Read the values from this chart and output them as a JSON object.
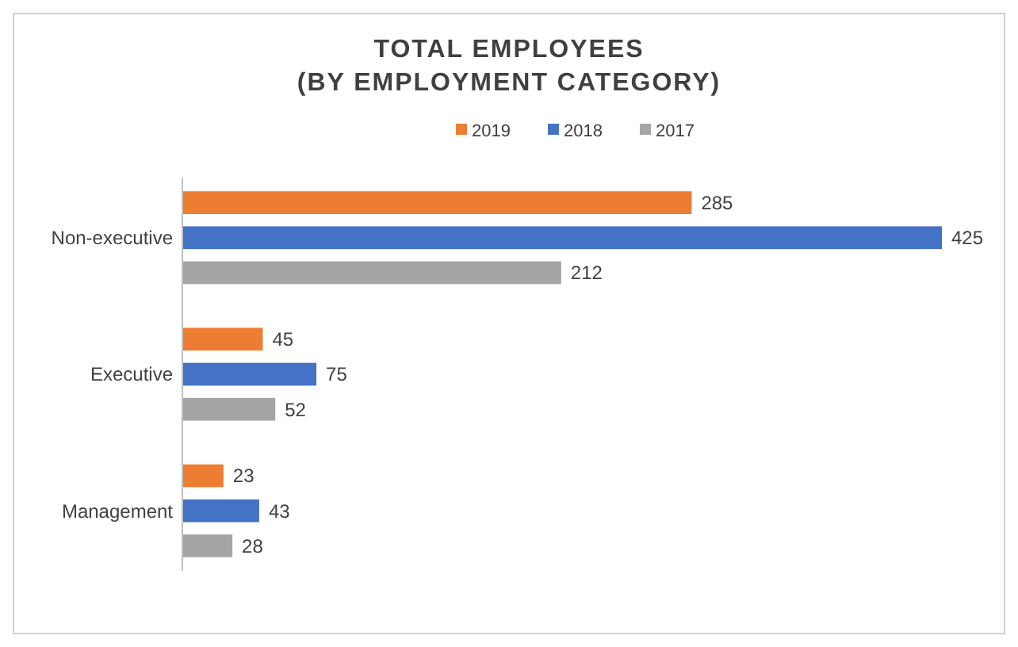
{
  "chart_data": {
    "type": "bar",
    "orientation": "horizontal",
    "title": "TOTAL EMPLOYEES\n(BY EMPLOYMENT CATEGORY)",
    "categories": [
      "Non-executive",
      "Executive",
      "Management"
    ],
    "series": [
      {
        "name": "2019",
        "color": "#ed7d31",
        "values": [
          285,
          45,
          23
        ]
      },
      {
        "name": "2018",
        "color": "#4472c4",
        "values": [
          425,
          75,
          43
        ]
      },
      {
        "name": "2017",
        "color": "#a5a5a5",
        "values": [
          212,
          52,
          28
        ]
      }
    ],
    "data_labels": true,
    "legend": "top"
  }
}
